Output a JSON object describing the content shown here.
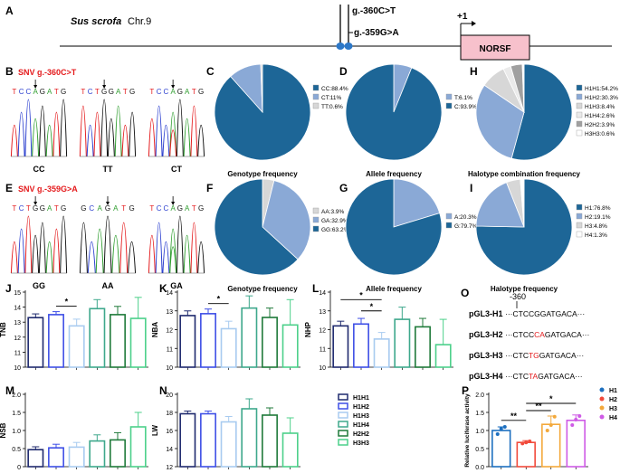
{
  "colors": {
    "pie_dark": "#1d6697",
    "pie_mid": "#8aa9d6",
    "pie_light": "#d7d7d7",
    "pie_grey": "#a0a0a0",
    "pie_pale": "#eaeaea",
    "red": "#e41a1c",
    "norsf_fill": "#f7c1cc",
    "H1H1": "#1f2a6e",
    "H1H2": "#3e4fe6",
    "H1H3": "#a8cbf0",
    "H1H4": "#3ea88c",
    "H2H2": "#1f7a3a",
    "H3H3": "#4cd08a",
    "H1": "#1d6fbf",
    "H2": "#f14a3b",
    "H3": "#f3a93c",
    "H4": "#cf5be6"
  },
  "panelA": {
    "label": "A",
    "species": "Sus scrofa",
    "chrom": "Chr.9",
    "snp1": "g.-360C>T",
    "snp2": "g.-359G>A",
    "tss": "+1",
    "gene": "NORSF"
  },
  "panelB": {
    "label": "B",
    "title": "SNV g.-360C>T",
    "traces": [
      {
        "seq": "TCCAGATG",
        "genotype": "CC"
      },
      {
        "seq": "TCTGGATG",
        "genotype": "TT"
      },
      {
        "seq": "TCCAGATG",
        "genotype": "CT"
      }
    ]
  },
  "panelE": {
    "label": "E",
    "title": "SNV g.-359G>A",
    "traces": [
      {
        "seq": "TCTGGATG",
        "genotype": "GG"
      },
      {
        "seq": "GCAGATG",
        "genotype": "AA"
      },
      {
        "seq": "TCCAGATG",
        "genotype": "GA"
      }
    ]
  },
  "chart_data": [
    {
      "id": "C",
      "type": "pie",
      "title": "Genotype frequency",
      "labels": [
        "CC:88.4%",
        "CT:11%",
        "TT:0.6%"
      ],
      "values": [
        88.4,
        11.0,
        0.6
      ]
    },
    {
      "id": "D",
      "type": "pie",
      "title": "Allele frequency",
      "labels": [
        "T:6.1%",
        "C:93.9%"
      ],
      "values": [
        6.1,
        93.9
      ]
    },
    {
      "id": "H",
      "type": "pie",
      "title": "Halotype combination frequency",
      "labels": [
        "H1H1:54.2%",
        "H1H2:30.3%",
        "H1H3:8.4%",
        "H1H4:2.6%",
        "H2H2:3.9%",
        "H3H3:0.6%"
      ],
      "values": [
        54.2,
        30.3,
        8.4,
        2.6,
        3.9,
        0.6
      ]
    },
    {
      "id": "F",
      "type": "pie",
      "title": "Genotype frequency",
      "labels": [
        "AA:3.9%",
        "GA:32.9%",
        "GG:63.2%"
      ],
      "values": [
        3.9,
        32.9,
        63.2
      ]
    },
    {
      "id": "G",
      "type": "pie",
      "title": "Allele frequency",
      "labels": [
        "A:20.3%",
        "G:79.7%"
      ],
      "values": [
        20.3,
        79.7
      ]
    },
    {
      "id": "I",
      "type": "pie",
      "title": "Halotype frequency",
      "labels": [
        "H1:76.8%",
        "H2:19.1%",
        "H3:4.8%",
        "H4:1.3%"
      ],
      "values": [
        76.8,
        19.1,
        4.8,
        1.3
      ]
    },
    {
      "id": "J",
      "type": "bar",
      "ylabel": "TNB",
      "categories": [
        "H1H1",
        "H1H2",
        "H1H3",
        "H1H4",
        "H2H2",
        "H3H3"
      ],
      "values": [
        13.3,
        13.5,
        12.75,
        13.9,
        13.5,
        13.25
      ],
      "errors": [
        0.25,
        0.2,
        0.45,
        0.6,
        0.55,
        1.4
      ],
      "ylim": [
        10,
        15
      ],
      "yticks": [
        10,
        11,
        12,
        13,
        14,
        15
      ],
      "sig": [
        {
          "from": 1,
          "to": 2,
          "label": "*"
        }
      ]
    },
    {
      "id": "K",
      "type": "bar",
      "ylabel": "NBA",
      "categories": [
        "H1H1",
        "H1H2",
        "H1H3",
        "H1H4",
        "H2H2",
        "H3H3"
      ],
      "values": [
        12.75,
        12.85,
        12.05,
        13.15,
        12.65,
        12.25
      ],
      "errors": [
        0.25,
        0.25,
        0.4,
        0.65,
        0.5,
        1.35
      ],
      "ylim": [
        10,
        14
      ],
      "yticks": [
        10,
        11,
        12,
        13,
        14
      ],
      "sig": [
        {
          "from": 1,
          "to": 2,
          "label": "*"
        }
      ]
    },
    {
      "id": "L",
      "type": "bar",
      "ylabel": "NHP",
      "categories": [
        "H1H1",
        "H1H2",
        "H1H3",
        "H1H4",
        "H2H2",
        "H3H3"
      ],
      "values": [
        12.2,
        12.3,
        11.5,
        12.55,
        12.15,
        11.2
      ],
      "errors": [
        0.25,
        0.3,
        0.35,
        0.65,
        0.45,
        1.35
      ],
      "ylim": [
        10,
        14
      ],
      "yticks": [
        10,
        11,
        12,
        13,
        14
      ],
      "sig": [
        {
          "from": 0,
          "to": 2,
          "label": "*"
        },
        {
          "from": 1,
          "to": 2,
          "label": "*"
        }
      ]
    },
    {
      "id": "M",
      "type": "bar",
      "ylabel": "NSB",
      "categories": [
        "H1H1",
        "H1H2",
        "H1H3",
        "H1H4",
        "H2H2",
        "H3H3"
      ],
      "values": [
        0.47,
        0.52,
        0.54,
        0.71,
        0.74,
        1.1
      ],
      "errors": [
        0.08,
        0.1,
        0.13,
        0.17,
        0.2,
        0.4
      ],
      "ylim": [
        0,
        2.0
      ],
      "yticks": [
        0,
        0.5,
        1.0,
        1.5,
        2.0
      ],
      "sig": []
    },
    {
      "id": "N",
      "type": "bar",
      "ylabel": "LW",
      "categories": [
        "H1H1",
        "H1H2",
        "H1H3",
        "H1H4",
        "H2H2",
        "H3H3"
      ],
      "values": [
        17.85,
        17.85,
        16.95,
        18.4,
        17.7,
        15.7
      ],
      "errors": [
        0.3,
        0.3,
        0.6,
        1.1,
        0.8,
        1.7
      ],
      "ylim": [
        12,
        20
      ],
      "yticks": [
        12,
        14,
        16,
        18,
        20
      ],
      "sig": []
    },
    {
      "id": "P",
      "type": "bar",
      "ylabel": "Relative luciferase activity",
      "categories": [
        "H1",
        "H2",
        "H3",
        "H4"
      ],
      "values": [
        1.0,
        0.67,
        1.17,
        1.28
      ],
      "errors": [
        0.1,
        0.05,
        0.23,
        0.15
      ],
      "points": [
        [
          0.9,
          1.05,
          1.1
        ],
        [
          0.64,
          0.67,
          0.7
        ],
        [
          1.0,
          1.15,
          1.38
        ],
        [
          1.15,
          1.3,
          1.4
        ]
      ],
      "ylim": [
        0,
        2.0
      ],
      "yticks": [
        0.0,
        0.5,
        1.0,
        1.5,
        2.0
      ],
      "sig": [
        {
          "from": 0,
          "to": 1,
          "label": "**"
        },
        {
          "from": 1,
          "to": 2,
          "label": "**"
        },
        {
          "from": 1,
          "to": 3,
          "label": "*"
        }
      ]
    }
  ],
  "legendHap": [
    "H1H1",
    "H1H2",
    "H1H3",
    "H1H4",
    "H2H2",
    "H3H3"
  ],
  "legendP": [
    "H1",
    "H2",
    "H3",
    "H4"
  ],
  "panelO": {
    "label": "O",
    "pos_label": "-360",
    "constructs": [
      {
        "name": "pGL3-H1",
        "pre": "···CTCC",
        "mut": "G",
        "post": "GATGACA···",
        "mut_red": false
      },
      {
        "name": "pGL3-H2",
        "pre": "···CTCC",
        "mut": "CA",
        "post": "GATGACA···",
        "mut_red": true
      },
      {
        "name": "pGL3-H3",
        "pre": "···CTC",
        "mut": "TG",
        "post": "GATGACA···",
        "mut_red": true
      },
      {
        "name": "pGL3-H4",
        "pre": "···CTC",
        "mut": "TA",
        "post": "GATGACA···",
        "mut_red": true
      }
    ]
  }
}
